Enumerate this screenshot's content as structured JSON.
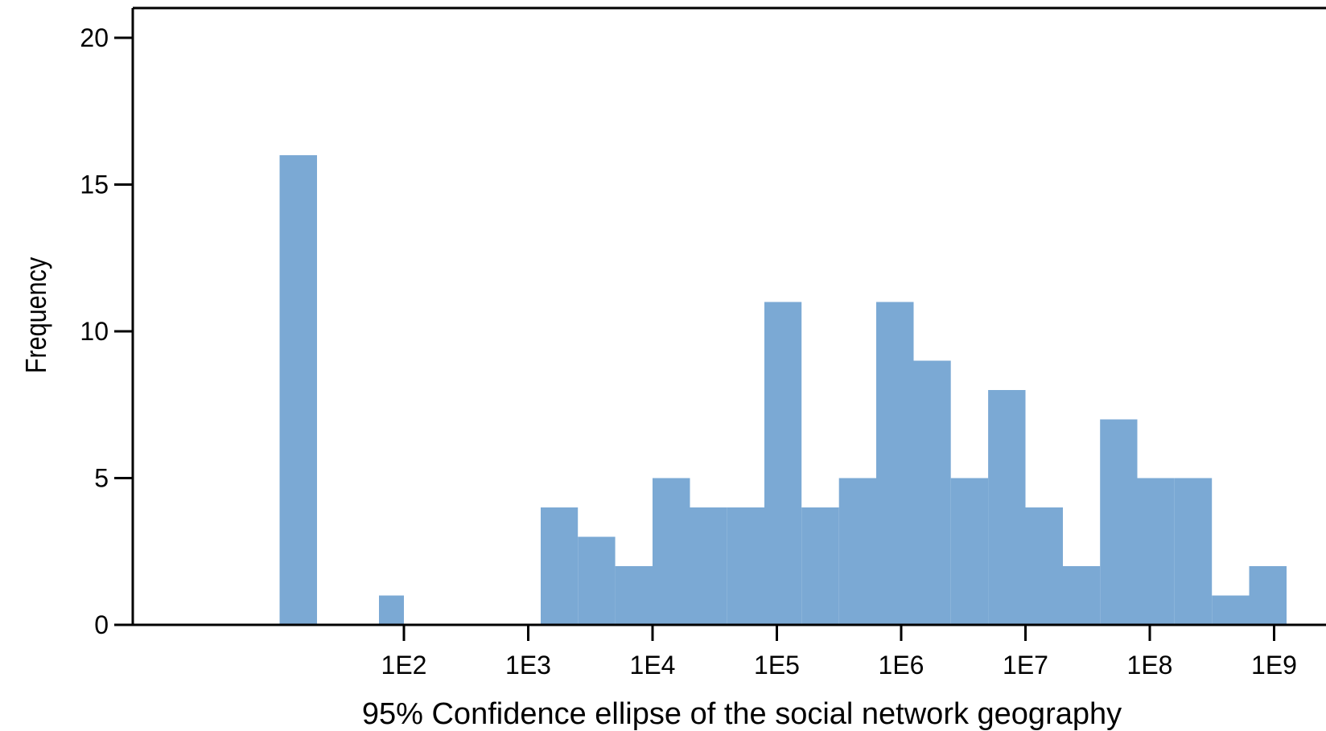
{
  "chart_data": {
    "type": "bar",
    "title": "",
    "xlabel": "95% Confidence ellipse of the social network geography",
    "ylabel": "Frequency",
    "x_scale": "log10",
    "ylim": [
      0,
      20
    ],
    "yticks": [
      0,
      5,
      10,
      15,
      20
    ],
    "xticks": [
      {
        "value": 100,
        "label": "1E2"
      },
      {
        "value": 1000,
        "label": "1E3"
      },
      {
        "value": 10000,
        "label": "1E4"
      },
      {
        "value": 100000,
        "label": "1E5"
      },
      {
        "value": 1000000,
        "label": "1E6"
      },
      {
        "value": 10000000,
        "label": "1E7"
      },
      {
        "value": 100000000,
        "label": "1E8"
      },
      {
        "value": 1000000000,
        "label": "1E9"
      }
    ],
    "bar_color": "#7ba9d4",
    "grid": false,
    "bins": [
      {
        "from": 10,
        "to": 20,
        "count": 16
      },
      {
        "from": 63,
        "to": 100,
        "count": 1
      },
      {
        "from": 1260,
        "to": 2510,
        "count": 4
      },
      {
        "from": 2510,
        "to": 5010,
        "count": 3
      },
      {
        "from": 5010,
        "to": 10000,
        "count": 2
      },
      {
        "from": 10000,
        "to": 20000,
        "count": 5
      },
      {
        "from": 20000,
        "to": 39800,
        "count": 4
      },
      {
        "from": 39800,
        "to": 79400,
        "count": 4
      },
      {
        "from": 79400,
        "to": 158000,
        "count": 11
      },
      {
        "from": 158000,
        "to": 316000,
        "count": 4
      },
      {
        "from": 316000,
        "to": 630000,
        "count": 5
      },
      {
        "from": 630000,
        "to": 1260000,
        "count": 11
      },
      {
        "from": 1260000,
        "to": 2510000,
        "count": 9
      },
      {
        "from": 2510000,
        "to": 5010000,
        "count": 5
      },
      {
        "from": 5010000,
        "to": 10000000,
        "count": 8
      },
      {
        "from": 10000000,
        "to": 20000000,
        "count": 4
      },
      {
        "from": 20000000,
        "to": 39800000,
        "count": 2
      },
      {
        "from": 39800000,
        "to": 79400000,
        "count": 7
      },
      {
        "from": 79400000,
        "to": 158000000,
        "count": 5
      },
      {
        "from": 158000000,
        "to": 316000000,
        "count": 5
      },
      {
        "from": 316000000,
        "to": 630000000,
        "count": 1
      },
      {
        "from": 630000000,
        "to": 1260000000,
        "count": 2
      }
    ]
  }
}
